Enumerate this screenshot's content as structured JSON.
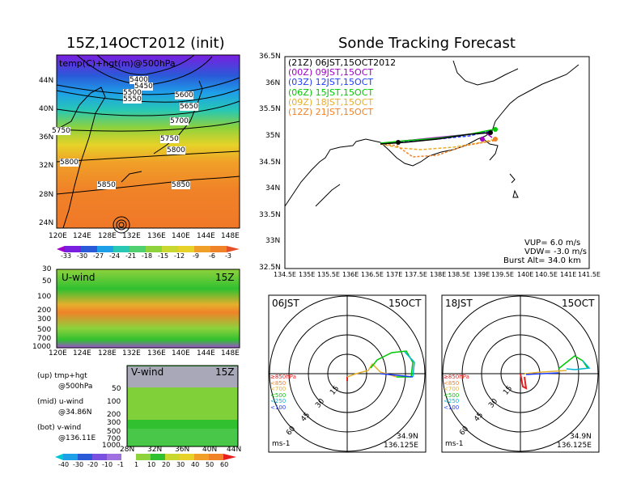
{
  "left_top": {
    "title": "15Z,14OCT2012 (init)",
    "label": "temp(C)+hgt(m)@500hPa",
    "lat_ticks": [
      "44N",
      "40N",
      "36N",
      "32N",
      "28N",
      "24N"
    ],
    "lon_ticks": [
      "120E",
      "124E",
      "128E",
      "132E",
      "136E",
      "140E",
      "144E",
      "148E"
    ],
    "contour_labels": [
      "5400",
      "5450",
      "5500",
      "5550",
      "5600",
      "5650",
      "5700",
      "5750",
      "5750",
      "5800",
      "5800",
      "5850",
      "5850"
    ],
    "colorbar": [
      "-33",
      "-30",
      "-27",
      "-24",
      "-21",
      "-18",
      "-15",
      "-12",
      "-9",
      "-6",
      "-3"
    ]
  },
  "u_wind": {
    "label": "U-wind",
    "time": "15Z",
    "p_ticks": [
      "30",
      "50",
      "100",
      "200",
      "300",
      "500",
      "700",
      "1000"
    ],
    "lon_ticks": [
      "120E",
      "124E",
      "128E",
      "132E",
      "136E",
      "140E",
      "144E",
      "148E"
    ]
  },
  "v_wind": {
    "label": "V-wind",
    "time": "15Z",
    "p_ticks": [
      "50",
      "100",
      "200",
      "300",
      "500",
      "700",
      "1000"
    ],
    "lat_ticks": [
      "28N",
      "32N",
      "36N",
      "40N",
      "44N"
    ],
    "colorbar": [
      "-40",
      "-30",
      "-20",
      "-10",
      "-1",
      "1",
      "10",
      "20",
      "30",
      "40",
      "50",
      "60"
    ]
  },
  "legend_left": [
    {
      "line1": "(up) tmp+hgt",
      "line2": "@500hPa"
    },
    {
      "line1": "(mid) u-wind",
      "line2": "@34.86N"
    },
    {
      "line1": "(bot) v-wind",
      "line2": "@136.11E"
    }
  ],
  "track": {
    "title": "Sonde Tracking Forecast",
    "lat_ticks": [
      "36.5N",
      "36N",
      "35.5N",
      "35N",
      "34.5N",
      "34N",
      "33.5N",
      "33N",
      "32.5N"
    ],
    "lon_ticks": [
      "134.5E",
      "135E",
      "135.5E",
      "136E",
      "136.5E",
      "137E",
      "137.5E",
      "138E",
      "138.5E",
      "139E",
      "139.5E",
      "140E",
      "140.5E",
      "141E",
      "141.5E"
    ],
    "launches": [
      {
        "text": "(21Z)  06JST,15OCT2012",
        "color": "#000000"
      },
      {
        "text": "(00Z)  09JST,15OCT",
        "color": "#a000c8"
      },
      {
        "text": "(03Z)  12JST,15OCT",
        "color": "#1e3cff"
      },
      {
        "text": "(06Z)  15JST,15OCT",
        "color": "#00c800"
      },
      {
        "text": "(09Z)  18JST,15OCT",
        "color": "#e6af2d"
      },
      {
        "text": "(12Z)  21JST,15OCT",
        "color": "#f08228"
      }
    ],
    "vup": "VUP=  6.0  m/s",
    "vdw": "VDW= -3.0  m/s",
    "burst": "Burst Alt=  34.0  km"
  },
  "polar": [
    {
      "time": "06JST",
      "date": "15OCT",
      "units": "ms-1",
      "lat": "34.9N",
      "lon": "136.125E",
      "ring_labels": [
        "15",
        "30",
        "45",
        "60"
      ]
    },
    {
      "time": "18JST",
      "date": "15OCT",
      "units": "ms-1",
      "lat": "34.9N",
      "lon": "136.125E",
      "ring_labels": [
        "15",
        "30",
        "45",
        "60"
      ]
    }
  ],
  "pressure_legend": [
    {
      "text": "≥850hPa",
      "color": "#e61e1e"
    },
    {
      "text": "<850",
      "color": "#f08228"
    },
    {
      "text": "<700",
      "color": "#e6af2d"
    },
    {
      "text": "<500",
      "color": "#00c800"
    },
    {
      "text": "<250",
      "color": "#00b4d2"
    },
    {
      "text": "<100",
      "color": "#1e3cff"
    }
  ]
}
